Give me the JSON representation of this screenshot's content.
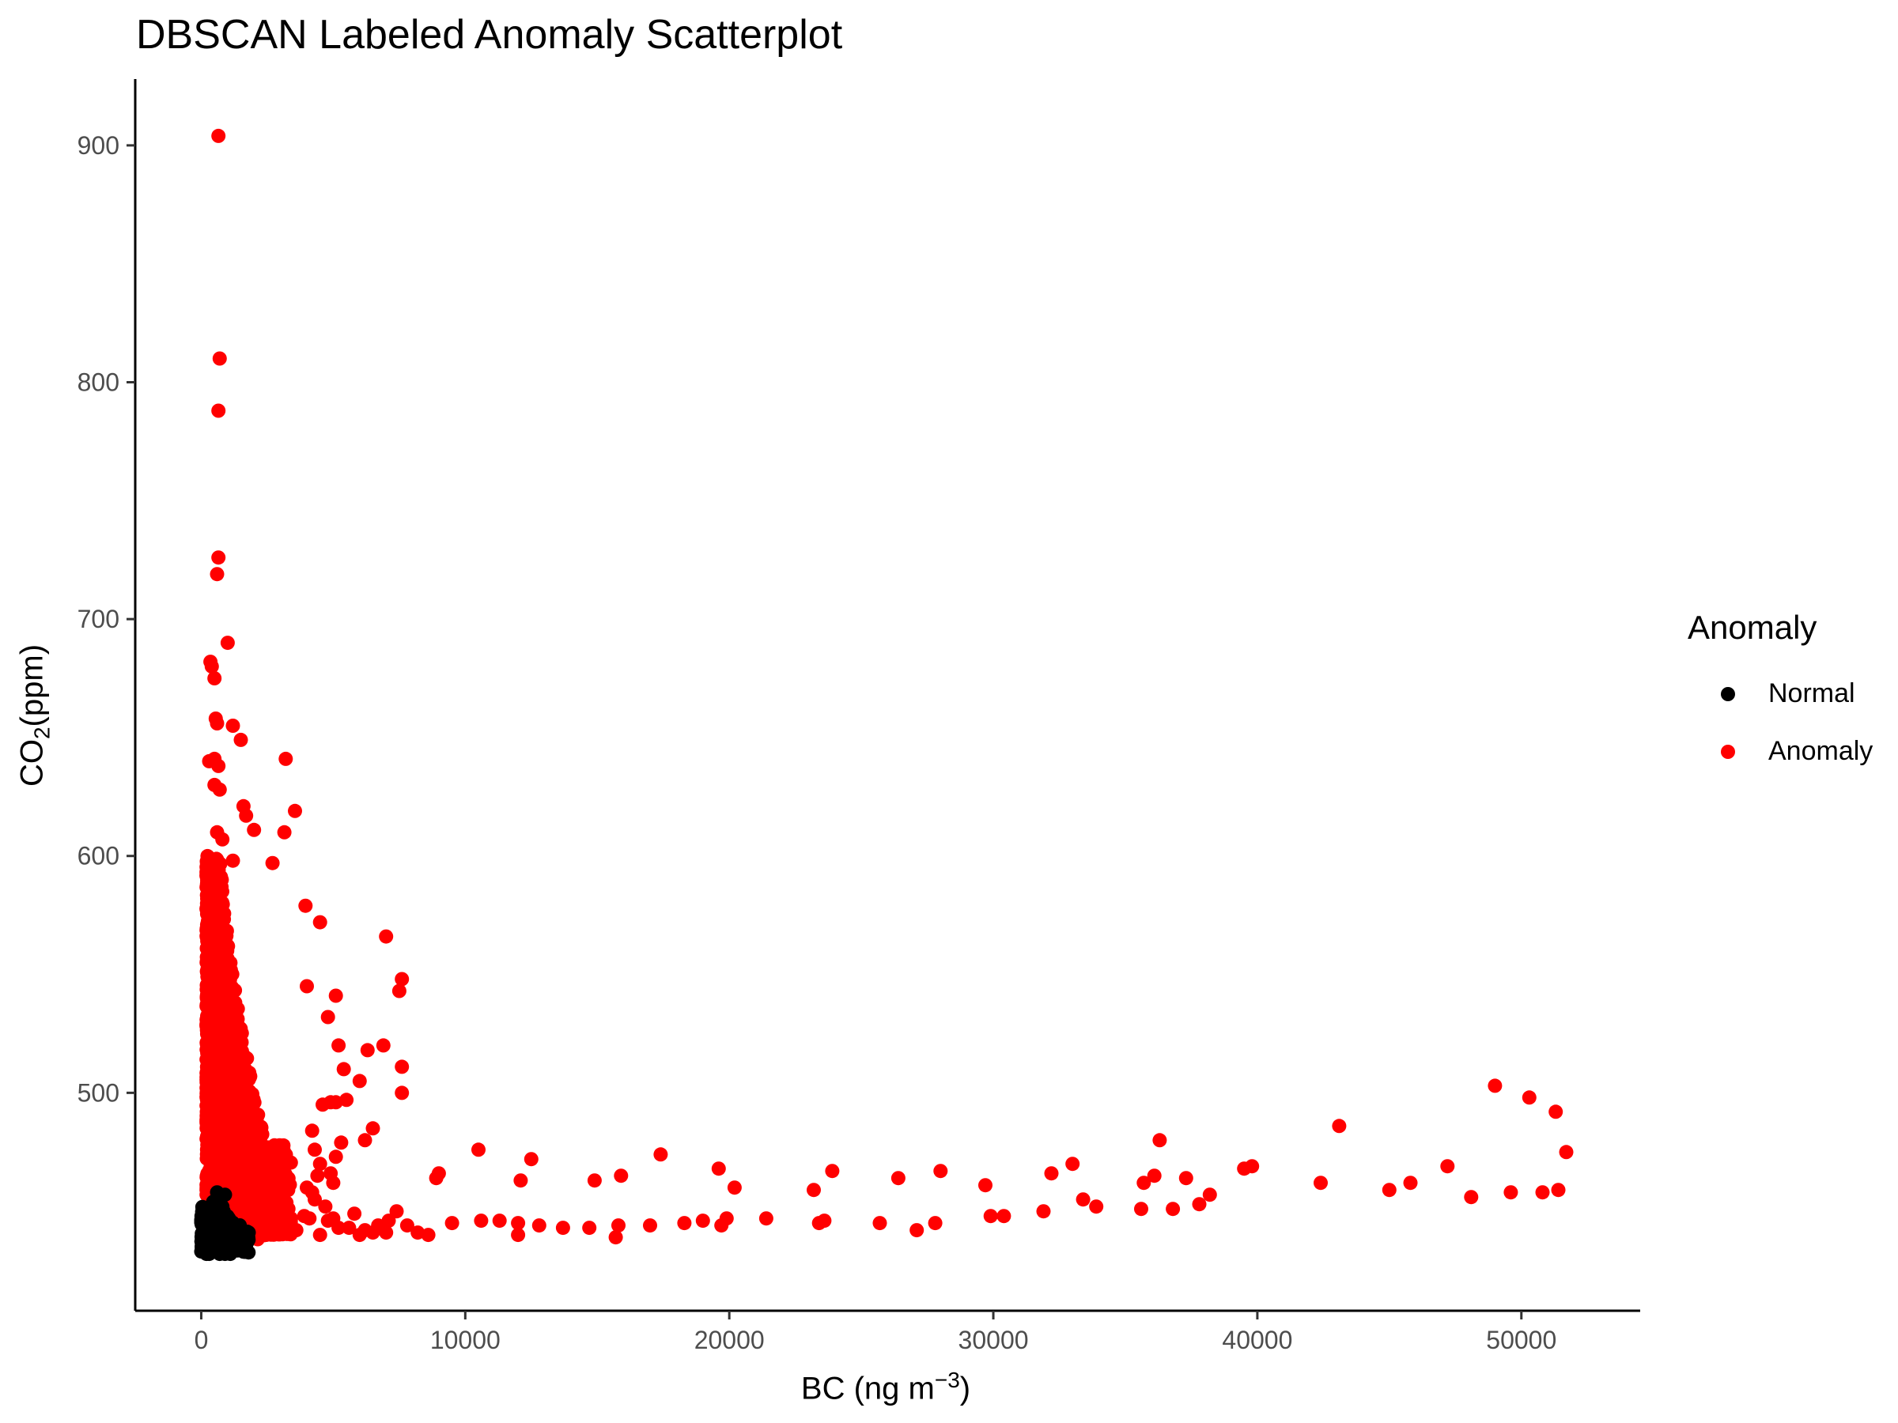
{
  "chart_data": {
    "type": "scatter",
    "title": "DBSCAN Labeled Anomaly Scatterplot",
    "xlabel": {
      "base": "BC (ng m",
      "sup": "−3",
      "tail": ")"
    },
    "ylabel": {
      "base": "CO",
      "sub": "2",
      "tail": "(ppm)"
    },
    "xlim": [
      -2500,
      54500
    ],
    "ylim": [
      408,
      928
    ],
    "x_ticks": [
      0,
      10000,
      20000,
      30000,
      40000,
      50000
    ],
    "y_ticks": [
      500,
      600,
      700,
      800,
      900
    ],
    "grid": false,
    "legend": {
      "title": "Anomaly",
      "placement": "right",
      "entries": [
        {
          "label": "Normal",
          "color": "#000000"
        },
        {
          "label": "Anomaly",
          "color": "#ff0000"
        }
      ]
    },
    "series": [
      {
        "name": "Anomaly",
        "color": "#ff0000",
        "points": [
          [
            650,
            904
          ],
          [
            700,
            810
          ],
          [
            650,
            788
          ],
          [
            650,
            726
          ],
          [
            600,
            719
          ],
          [
            1000,
            690
          ],
          [
            350,
            682
          ],
          [
            400,
            680
          ],
          [
            500,
            675
          ],
          [
            550,
            658
          ],
          [
            600,
            656
          ],
          [
            1200,
            655
          ],
          [
            1500,
            649
          ],
          [
            300,
            640
          ],
          [
            500,
            641
          ],
          [
            650,
            638
          ],
          [
            500,
            630
          ],
          [
            700,
            628
          ],
          [
            3200,
            641
          ],
          [
            1600,
            621
          ],
          [
            1700,
            617
          ],
          [
            3550,
            619
          ],
          [
            2000,
            611
          ],
          [
            3150,
            610
          ],
          [
            600,
            610
          ],
          [
            800,
            607
          ],
          [
            1200,
            598
          ],
          [
            2700,
            597
          ],
          [
            3950,
            579
          ],
          [
            4500,
            572
          ],
          [
            7000,
            566
          ],
          [
            7600,
            548
          ],
          [
            7500,
            543
          ],
          [
            4000,
            545
          ],
          [
            5100,
            541
          ],
          [
            4800,
            532
          ],
          [
            5200,
            520
          ],
          [
            6900,
            520
          ],
          [
            6300,
            518
          ],
          [
            5400,
            510
          ],
          [
            7600,
            511
          ],
          [
            6000,
            505
          ],
          [
            5500,
            497
          ],
          [
            7600,
            500
          ],
          [
            6500,
            485
          ],
          [
            6200,
            480
          ],
          [
            4200,
            484
          ],
          [
            10500,
            476
          ],
          [
            12500,
            472
          ],
          [
            17400,
            474
          ],
          [
            19600,
            468
          ],
          [
            23900,
            467
          ],
          [
            28000,
            467
          ],
          [
            20200,
            460
          ],
          [
            23200,
            459
          ],
          [
            26400,
            464
          ],
          [
            29700,
            461
          ],
          [
            32200,
            466
          ],
          [
            33000,
            470
          ],
          [
            33400,
            455
          ],
          [
            33900,
            452
          ],
          [
            35600,
            451
          ],
          [
            35700,
            462
          ],
          [
            36100,
            465
          ],
          [
            36300,
            480
          ],
          [
            36800,
            451
          ],
          [
            37300,
            464
          ],
          [
            37800,
            453
          ],
          [
            38200,
            457
          ],
          [
            39500,
            468
          ],
          [
            39800,
            469
          ],
          [
            42400,
            462
          ],
          [
            43100,
            486
          ],
          [
            45000,
            459
          ],
          [
            45800,
            462
          ],
          [
            47200,
            469
          ],
          [
            48100,
            456
          ],
          [
            49000,
            503
          ],
          [
            49600,
            458
          ],
          [
            50300,
            498
          ],
          [
            50800,
            458
          ],
          [
            51300,
            492
          ],
          [
            51400,
            459
          ],
          [
            51700,
            475
          ],
          [
            8900,
            464
          ],
          [
            9000,
            466
          ],
          [
            9500,
            445
          ],
          [
            10600,
            446
          ],
          [
            11300,
            446
          ],
          [
            12000,
            445
          ],
          [
            12000,
            440
          ],
          [
            12100,
            463
          ],
          [
            12800,
            444
          ],
          [
            13700,
            443
          ],
          [
            14700,
            443
          ],
          [
            14900,
            463
          ],
          [
            15700,
            439
          ],
          [
            15800,
            444
          ],
          [
            15900,
            465
          ],
          [
            17000,
            444
          ],
          [
            18300,
            445
          ],
          [
            19000,
            446
          ],
          [
            19700,
            444
          ],
          [
            19900,
            447
          ],
          [
            21400,
            447
          ],
          [
            23400,
            445
          ],
          [
            23600,
            446
          ],
          [
            25700,
            445
          ],
          [
            27100,
            442
          ],
          [
            27800,
            445
          ],
          [
            29900,
            448
          ],
          [
            30400,
            448
          ],
          [
            31900,
            450
          ],
          [
            5800,
            449
          ],
          [
            6200,
            442
          ],
          [
            6700,
            444
          ],
          [
            7100,
            446
          ],
          [
            7400,
            450
          ],
          [
            7800,
            444
          ],
          [
            8200,
            441
          ],
          [
            8600,
            440
          ],
          [
            4500,
            440
          ],
          [
            4800,
            446
          ],
          [
            5000,
            447
          ],
          [
            5200,
            443
          ],
          [
            5600,
            443
          ],
          [
            6000,
            440
          ],
          [
            6500,
            441
          ],
          [
            7000,
            441
          ],
          [
            3100,
            453
          ],
          [
            3400,
            447
          ],
          [
            3600,
            442
          ],
          [
            3900,
            448
          ],
          [
            4100,
            447
          ],
          [
            4300,
            455
          ],
          [
            4700,
            452
          ],
          [
            5000,
            462
          ],
          [
            4300,
            476
          ],
          [
            4500,
            470
          ],
          [
            4900,
            466
          ],
          [
            5100,
            473
          ],
          [
            5300,
            479
          ],
          [
            4600,
            495
          ],
          [
            4900,
            496
          ],
          [
            5100,
            496
          ],
          [
            4000,
            460
          ],
          [
            4200,
            458
          ],
          [
            4400,
            465
          ]
        ]
      },
      {
        "name": "Normal",
        "color": "#000000",
        "points": [
          [
            0,
            433
          ],
          [
            100,
            434
          ],
          [
            200,
            436
          ],
          [
            300,
            438
          ],
          [
            400,
            440
          ],
          [
            500,
            442
          ],
          [
            600,
            445
          ],
          [
            700,
            448
          ],
          [
            800,
            452
          ],
          [
            900,
            457
          ],
          [
            200,
            432
          ],
          [
            400,
            433
          ],
          [
            600,
            434
          ],
          [
            800,
            435
          ],
          [
            1000,
            436
          ],
          [
            1200,
            437
          ],
          [
            1400,
            438
          ],
          [
            300,
            445
          ],
          [
            500,
            450
          ],
          [
            700,
            455
          ],
          [
            400,
            452
          ],
          [
            600,
            458
          ],
          [
            800,
            442
          ],
          [
            1000,
            440
          ],
          [
            1100,
            444
          ],
          [
            1300,
            436
          ],
          [
            1500,
            435
          ],
          [
            1600,
            438
          ],
          [
            1700,
            436
          ],
          [
            150,
            440
          ],
          [
            250,
            446
          ],
          [
            350,
            449
          ],
          [
            450,
            454
          ],
          [
            550,
            437
          ],
          [
            650,
            441
          ],
          [
            750,
            446
          ],
          [
            850,
            450
          ],
          [
            950,
            443
          ],
          [
            1050,
            447
          ],
          [
            1150,
            433
          ],
          [
            1250,
            441
          ],
          [
            1350,
            434
          ],
          [
            1450,
            440
          ],
          [
            300,
            432
          ],
          [
            700,
            432
          ],
          [
            900,
            432
          ],
          [
            1100,
            432
          ]
        ]
      }
    ]
  }
}
